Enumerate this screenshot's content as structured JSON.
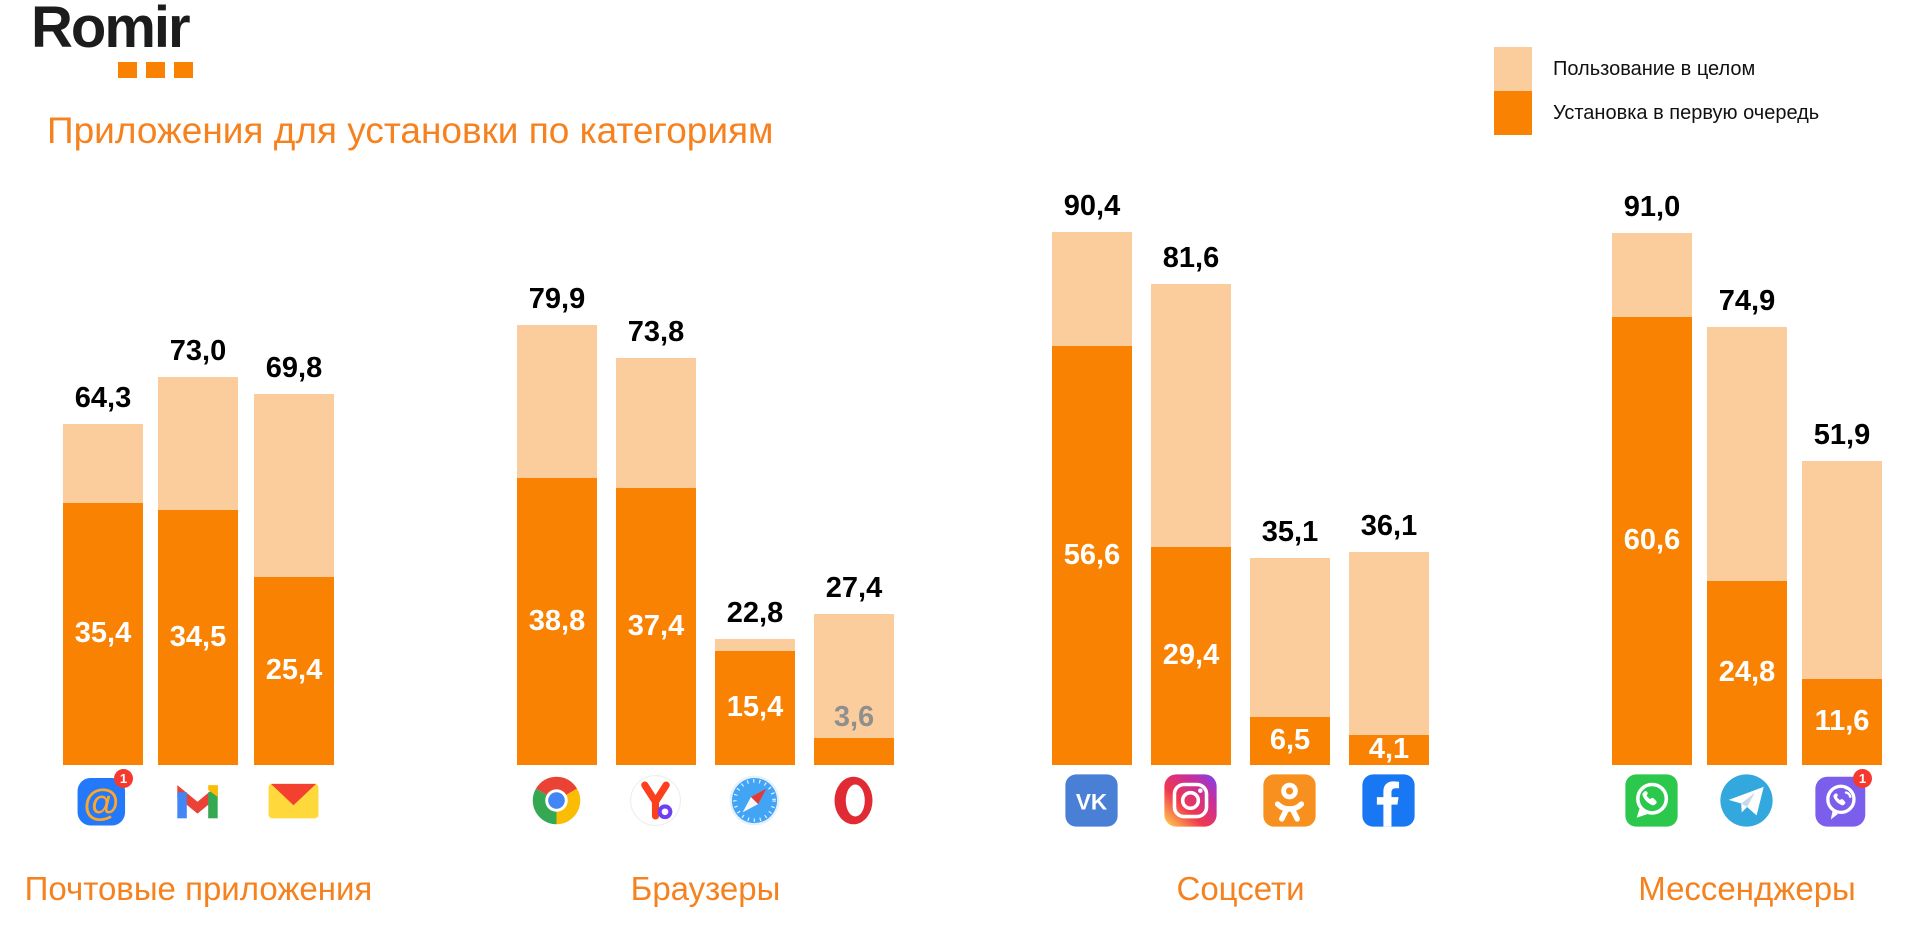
{
  "logo": {
    "text": "Romir",
    "dots_color": "#F98203"
  },
  "title": {
    "text": "Приложения для установки по категориям",
    "color": "#F5821F"
  },
  "legend": {
    "items": [
      {
        "label": "Пользование в целом",
        "color": "#FBCD9C"
      },
      {
        "label": "Установка в первую очередь",
        "color": "#F98203"
      }
    ]
  },
  "chart_data": {
    "type": "bar",
    "subtype": "grouped-overlay-columns",
    "unit": "percent",
    "legend_position": "top-right",
    "grid": false,
    "series": [
      {
        "name": "Пользование в целом",
        "color": "#FBCD9C"
      },
      {
        "name": "Установка в первую очередь",
        "color": "#F98203"
      }
    ],
    "groups": [
      {
        "category": "Почтовые приложения",
        "bars": [
          {
            "icon": "mailru-app-icon",
            "badge": "1",
            "total": 64.3,
            "install": 35.4,
            "total_label": "64,3",
            "install_label": "35,4",
            "install_label_style": "inside-white"
          },
          {
            "icon": "gmail-app-icon",
            "total": 73.0,
            "install": 34.5,
            "total_label": "73,0",
            "install_label": "34,5",
            "install_label_style": "inside-white"
          },
          {
            "icon": "yandex-mail-app-icon",
            "total": 69.8,
            "install": 25.4,
            "total_label": "69,8",
            "install_label": "25,4",
            "install_label_style": "inside-white"
          }
        ]
      },
      {
        "category": "Браузеры",
        "bars": [
          {
            "icon": "chrome-app-icon",
            "total": 79.9,
            "install": 38.8,
            "total_label": "79,9",
            "install_label": "38,8",
            "install_label_style": "inside-white"
          },
          {
            "icon": "yandex-browser-app-icon",
            "total": 73.8,
            "install": 37.4,
            "total_label": "73,8",
            "install_label": "37,4",
            "install_label_style": "inside-white"
          },
          {
            "icon": "safari-app-icon",
            "total": 22.8,
            "install": 15.4,
            "total_label": "22,8",
            "install_label": "15,4",
            "install_label_style": "inside-white"
          },
          {
            "icon": "opera-app-icon",
            "total": 27.4,
            "install": 3.6,
            "total_label": "27,4",
            "install_label": "3,6",
            "install_label_style": "above-gray"
          }
        ]
      },
      {
        "category": "Соцсети",
        "bars": [
          {
            "icon": "vk-app-icon",
            "total": 90.4,
            "install": 56.6,
            "total_label": "90,4",
            "install_label": "56,6",
            "install_label_style": "inside-white"
          },
          {
            "icon": "instagram-app-icon",
            "total": 81.6,
            "install": 29.4,
            "total_label": "81,6",
            "install_label": "29,4",
            "install_label_style": "inside-white"
          },
          {
            "icon": "odnoklassniki-app-icon",
            "total": 35.1,
            "install": 6.5,
            "total_label": "35,1",
            "install_label": "6,5",
            "install_label_style": "inside-white"
          },
          {
            "icon": "facebook-app-icon",
            "total": 36.1,
            "install": 4.1,
            "total_label": "36,1",
            "install_label": "4,1",
            "install_label_style": "inside-white"
          }
        ]
      },
      {
        "category": "Мессенджеры",
        "bars": [
          {
            "icon": "whatsapp-app-icon",
            "total": 91.0,
            "install": 60.6,
            "total_label": "91,0",
            "install_label": "60,6",
            "install_label_style": "inside-white"
          },
          {
            "icon": "telegram-app-icon",
            "total": 74.9,
            "install": 24.8,
            "total_label": "74,9",
            "install_label": "24,8",
            "install_label_style": "inside-white"
          },
          {
            "icon": "viber-app-icon",
            "badge": "1",
            "total": 51.9,
            "install": 11.6,
            "total_label": "51,9",
            "install_label": "11,6",
            "install_label_style": "inside-white"
          }
        ]
      }
    ]
  }
}
